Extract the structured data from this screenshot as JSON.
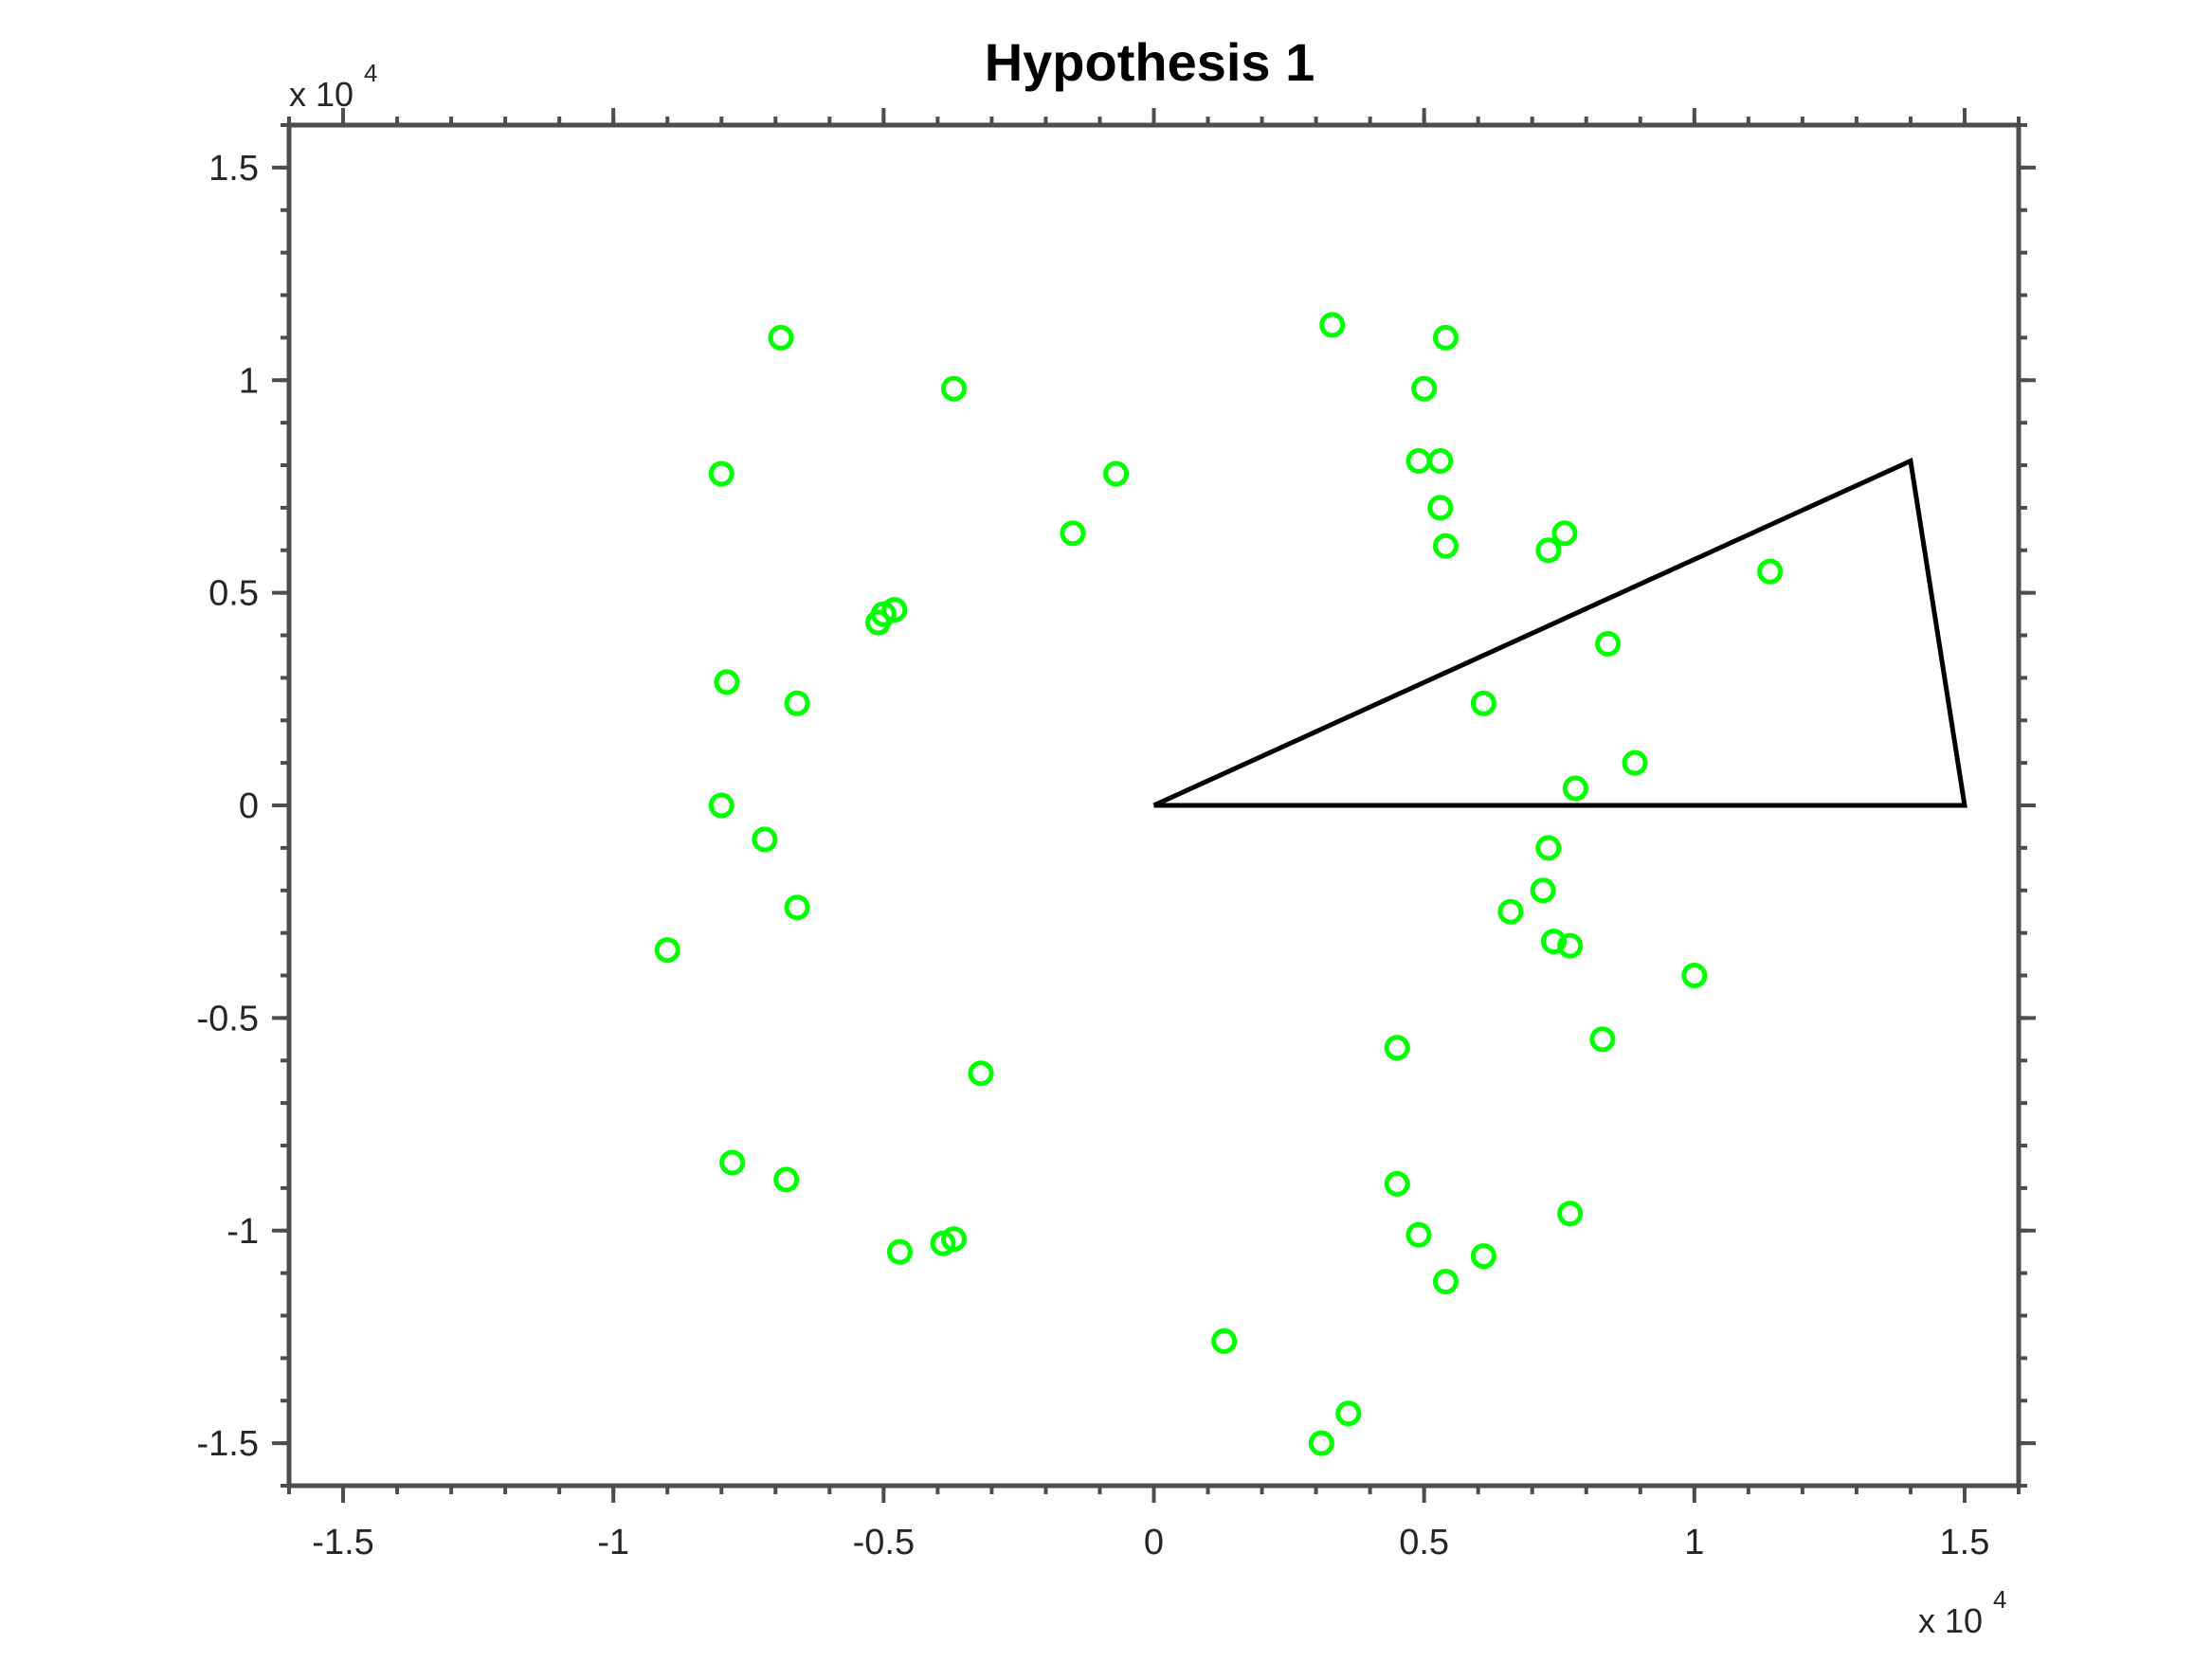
{
  "chart_data": {
    "type": "scatter",
    "title": "Hypothesis 1",
    "xlabel": "",
    "ylabel": "",
    "xlim": [
      -1.6,
      1.6
    ],
    "ylim": [
      -1.6,
      1.6
    ],
    "x_exponent_label": "x 10",
    "x_exponent_power": "4",
    "y_exponent_label": "x 10",
    "y_exponent_power": "4",
    "x_ticks": [
      -1.5,
      -1,
      -0.5,
      0,
      0.5,
      1,
      1.5
    ],
    "x_tick_labels": [
      "-1.5",
      "-1",
      "-0.5",
      "0",
      "0.5",
      "1",
      "1.5"
    ],
    "y_ticks": [
      -1.5,
      -1,
      -0.5,
      0,
      0.5,
      1,
      1.5
    ],
    "y_tick_labels": [
      "-1.5",
      "-1",
      "-0.5",
      "0",
      "0.5",
      "1",
      "1.5"
    ],
    "grid": false,
    "marker_color": "#00ff00",
    "axis_color": "#4d4d4d",
    "polygon_color": "#000000",
    "points": [
      [
        -0.69,
        1.1
      ],
      [
        -0.37,
        0.98
      ],
      [
        -0.8,
        0.78
      ],
      [
        -0.07,
        0.78
      ],
      [
        -0.15,
        0.64
      ],
      [
        -0.48,
        0.46
      ],
      [
        -0.5,
        0.45
      ],
      [
        -0.51,
        0.43
      ],
      [
        -0.79,
        0.29
      ],
      [
        -0.66,
        0.24
      ],
      [
        -0.8,
        0.0
      ],
      [
        -0.72,
        -0.08
      ],
      [
        -0.66,
        -0.24
      ],
      [
        -0.9,
        -0.34
      ],
      [
        -0.32,
        -0.63
      ],
      [
        -0.78,
        -0.84
      ],
      [
        -0.68,
        -0.88
      ],
      [
        -0.47,
        -1.05
      ],
      [
        -0.39,
        -1.03
      ],
      [
        -0.37,
        -1.02
      ],
      [
        0.13,
        -1.26
      ],
      [
        0.31,
        -1.5
      ],
      [
        0.36,
        -1.43
      ],
      [
        0.33,
        1.13
      ],
      [
        0.54,
        1.1
      ],
      [
        0.5,
        0.98
      ],
      [
        0.49,
        0.81
      ],
      [
        0.53,
        0.81
      ],
      [
        0.53,
        0.7
      ],
      [
        0.54,
        0.61
      ],
      [
        0.73,
        0.6
      ],
      [
        0.76,
        0.64
      ],
      [
        1.14,
        0.55
      ],
      [
        0.84,
        0.38
      ],
      [
        0.61,
        0.24
      ],
      [
        0.89,
        0.1
      ],
      [
        0.78,
        0.04
      ],
      [
        0.73,
        -0.1
      ],
      [
        0.72,
        -0.2
      ],
      [
        0.66,
        -0.25
      ],
      [
        0.74,
        -0.32
      ],
      [
        0.77,
        -0.33
      ],
      [
        1.0,
        -0.4
      ],
      [
        0.83,
        -0.55
      ],
      [
        0.45,
        -0.57
      ],
      [
        0.45,
        -0.89
      ],
      [
        0.49,
        -1.01
      ],
      [
        0.61,
        -1.06
      ],
      [
        0.54,
        -1.12
      ],
      [
        0.77,
        -0.96
      ]
    ],
    "polygon": [
      [
        0,
        0
      ],
      [
        1.4,
        0.81
      ],
      [
        1.5,
        0.0
      ],
      [
        0,
        0
      ]
    ]
  }
}
